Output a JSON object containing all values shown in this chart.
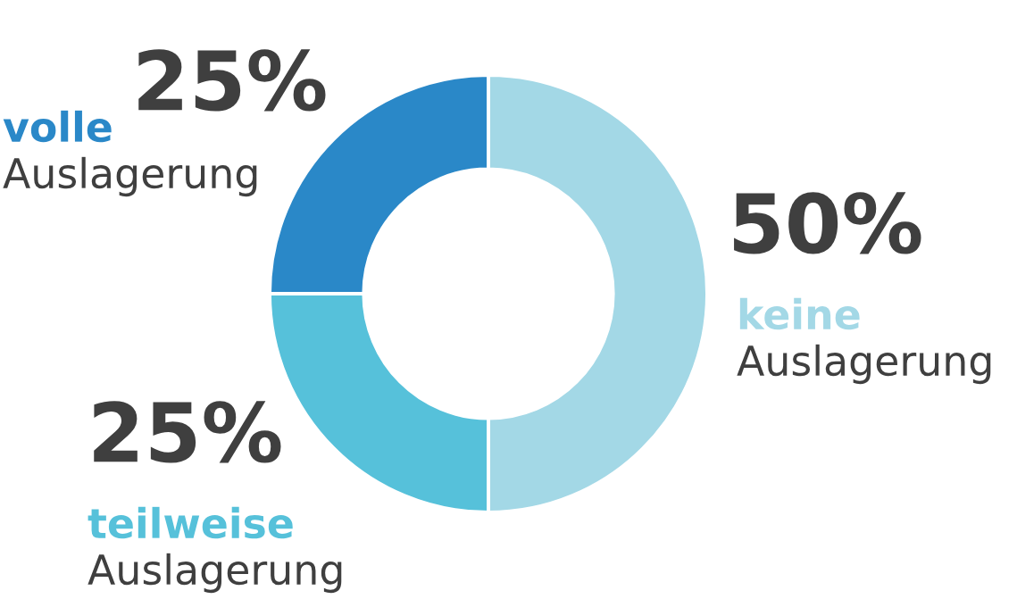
{
  "chart_data": {
    "type": "donut",
    "categories": [
      "keine Auslagerung",
      "teilweise Auslagerung",
      "volle Auslagerung"
    ],
    "values": [
      50,
      25,
      25
    ],
    "value_labels": [
      "50%",
      "25%",
      "25%"
    ],
    "colors": [
      "#a3d8e6",
      "#56c1da",
      "#2a88c8"
    ],
    "legend": false
  }
}
